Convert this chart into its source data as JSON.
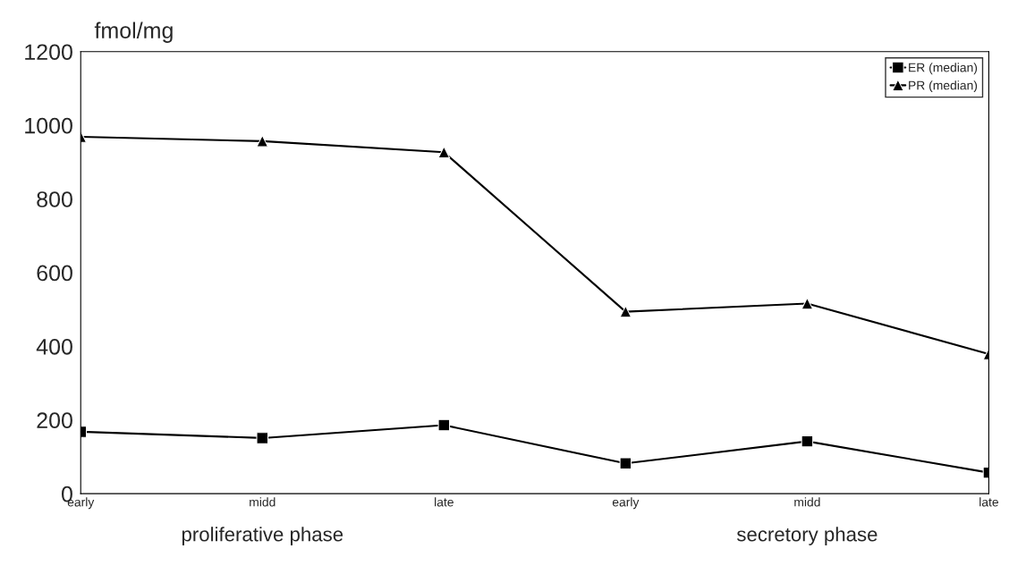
{
  "chart_data": {
    "type": "line",
    "ylabel": "fmol/mg",
    "categories": [
      "early",
      "midd",
      "late",
      "early",
      "midd",
      "late"
    ],
    "series": [
      {
        "name": "ER (median)",
        "color": "#000000",
        "marker": "square",
        "values": [
          168,
          151,
          186,
          82,
          142,
          57
        ]
      },
      {
        "name": "PR (median)",
        "color": "#000000",
        "marker": "triangle",
        "values": [
          969,
          957,
          927,
          494,
          516,
          379
        ]
      }
    ],
    "ylim": [
      0,
      1200
    ],
    "yticks": [
      0,
      200,
      400,
      600,
      800,
      1000,
      1200
    ],
    "grid": false,
    "legend": "top right",
    "line_style": "solid",
    "annotations": [
      "proliferative phase",
      "secretory phase"
    ]
  }
}
